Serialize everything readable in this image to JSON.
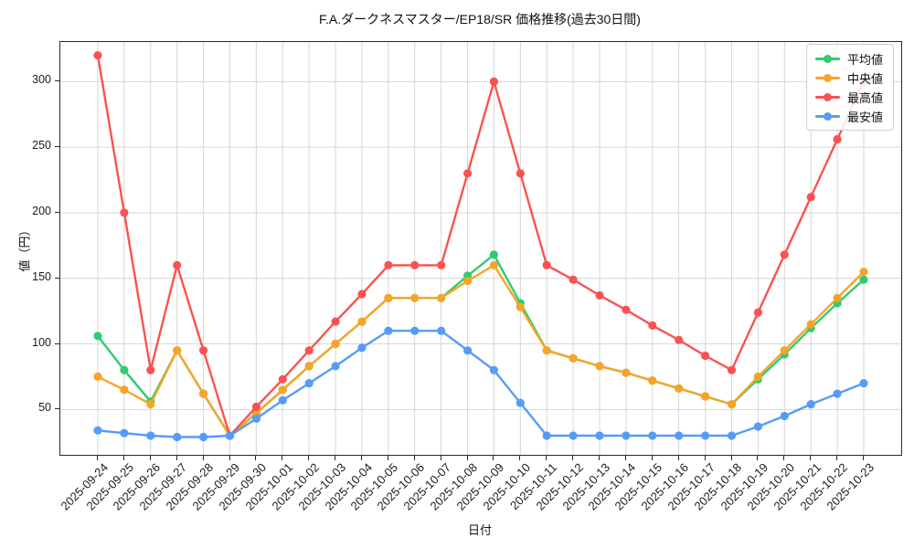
{
  "title": "F.A.ダークネスマスター/EP18/SR 価格推移(過去30日間)",
  "chart_data": {
    "type": "line",
    "title": "F.A.ダークネスマスター/EP18/SR 価格推移(過去30日間)",
    "xlabel": "日付",
    "ylabel": "値（円）",
    "x_tick_rotation": 45,
    "grid": true,
    "legend_position": "upper right",
    "ylim": [
      15.4,
      330.2
    ],
    "y_ticks": [
      50,
      100,
      150,
      200,
      250,
      300
    ],
    "categories": [
      "2025-09-24",
      "2025-09-25",
      "2025-09-26",
      "2025-09-27",
      "2025-09-28",
      "2025-09-29",
      "2025-09-30",
      "2025-10-01",
      "2025-10-02",
      "2025-10-03",
      "2025-10-04",
      "2025-10-05",
      "2025-10-06",
      "2025-10-07",
      "2025-10-08",
      "2025-10-09",
      "2025-10-10",
      "2025-10-11",
      "2025-10-12",
      "2025-10-13",
      "2025-10-14",
      "2025-10-15",
      "2025-10-16",
      "2025-10-17",
      "2025-10-18",
      "2025-10-19",
      "2025-10-20",
      "2025-10-21",
      "2025-10-22",
      "2025-10-23"
    ],
    "series": [
      {
        "name": "平均値",
        "color": "#2ecc71",
        "values": [
          106,
          80,
          56,
          95,
          62,
          30,
          47,
          65,
          83,
          100,
          117,
          135,
          135,
          135,
          152,
          168,
          131,
          95,
          89,
          83,
          78,
          72,
          66,
          60,
          54,
          73,
          92,
          112,
          131,
          149
        ]
      },
      {
        "name": "中央値",
        "color": "#f7a428",
        "values": [
          75,
          65,
          54,
          95,
          62,
          30,
          47,
          65,
          83,
          100,
          117,
          135,
          135,
          135,
          148,
          160,
          128,
          95,
          89,
          83,
          78,
          72,
          66,
          60,
          54,
          75,
          95,
          115,
          135,
          155
        ]
      },
      {
        "name": "最高値",
        "color": "#fa5252",
        "values": [
          320,
          200,
          80,
          160,
          95,
          30,
          52,
          73,
          95,
          117,
          138,
          160,
          160,
          160,
          230,
          300,
          230,
          160,
          149,
          137,
          126,
          114,
          103,
          91,
          80,
          124,
          168,
          212,
          256,
          300
        ]
      },
      {
        "name": "最安値",
        "color": "#569cf6",
        "values": [
          34,
          32,
          30,
          29,
          29,
          30,
          43,
          57,
          70,
          83,
          97,
          110,
          110,
          110,
          95,
          80,
          55,
          30,
          30,
          30,
          30,
          30,
          30,
          30,
          30,
          37,
          45,
          54,
          62,
          70
        ]
      }
    ],
    "grid_color": "#d6d6d6",
    "axis_color": "#2a2a2a"
  }
}
